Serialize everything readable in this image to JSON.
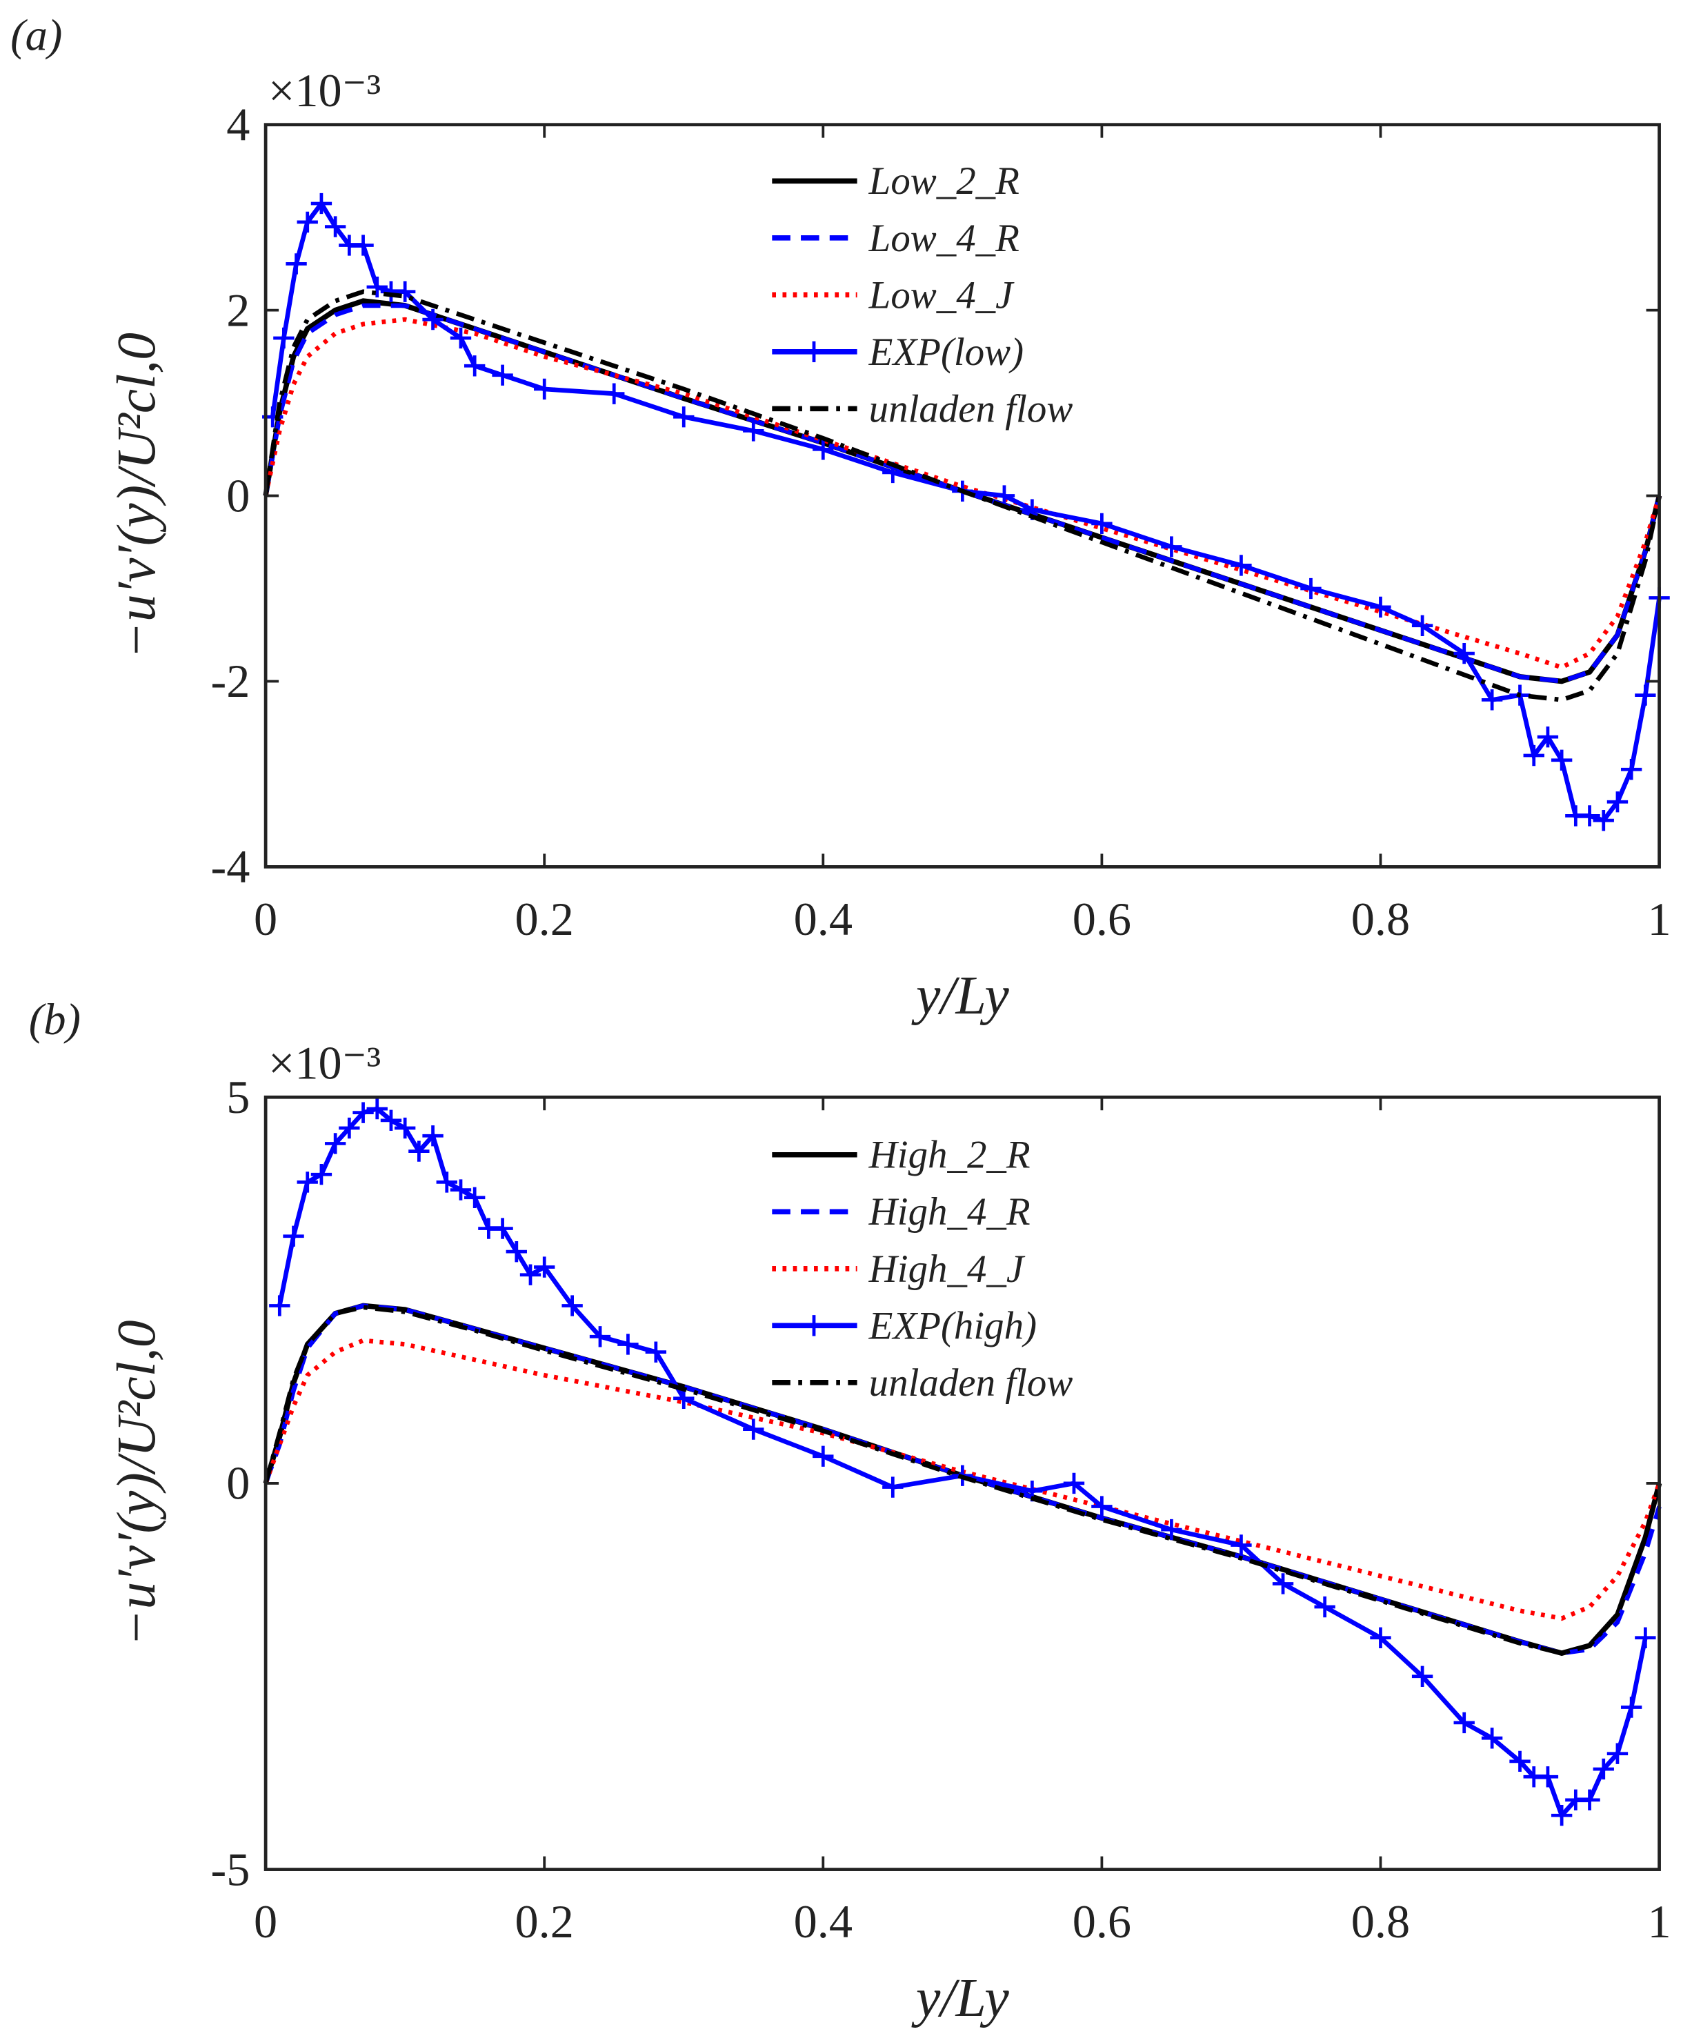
{
  "chart_data": [
    {
      "type": "line",
      "panel_label": "(a)",
      "multiplier": "×10⁻³",
      "xlabel": "y/Ly",
      "ylabel": "−u′v′(y)/U²cl,0",
      "xlim": [
        0,
        1
      ],
      "ylim": [
        -4,
        4
      ],
      "xticks": [
        0,
        0.2,
        0.4,
        0.6,
        0.8,
        1
      ],
      "yticks": [
        -4,
        -2,
        0,
        2,
        4
      ],
      "legend": "top",
      "x": [
        0,
        0.01,
        0.02,
        0.03,
        0.05,
        0.07,
        0.1,
        0.15,
        0.2,
        0.3,
        0.4,
        0.5,
        0.6,
        0.7,
        0.8,
        0.9,
        0.93,
        0.95,
        0.97,
        0.99,
        1
      ],
      "series": [
        {
          "name": "Low_2_R",
          "color": "#000000",
          "style": "solid",
          "values": [
            0,
            0.9,
            1.5,
            1.8,
            2.0,
            2.1,
            2.05,
            1.8,
            1.55,
            1.05,
            0.57,
            0.05,
            -0.45,
            -0.95,
            -1.45,
            -1.95,
            -2.0,
            -1.9,
            -1.5,
            -0.6,
            0
          ]
        },
        {
          "name": "Low_4_R",
          "color": "#0000ff",
          "style": "dashed",
          "values": [
            0,
            0.85,
            1.45,
            1.75,
            1.95,
            2.05,
            2.05,
            1.8,
            1.55,
            1.05,
            0.57,
            0.05,
            -0.45,
            -0.95,
            -1.45,
            -1.95,
            -2.0,
            -1.9,
            -1.5,
            -0.6,
            0
          ]
        },
        {
          "name": "Low_4_J",
          "color": "#ff0000",
          "style": "dotted",
          "values": [
            0,
            0.7,
            1.2,
            1.5,
            1.75,
            1.85,
            1.9,
            1.75,
            1.5,
            1.1,
            0.6,
            0.1,
            -0.35,
            -0.8,
            -1.25,
            -1.7,
            -1.85,
            -1.7,
            -1.3,
            -0.5,
            0
          ]
        },
        {
          "name": "EXP(low)",
          "color": "#0000ff",
          "style": "solid",
          "marker": "+",
          "x": [
            0.005,
            0.013,
            0.022,
            0.03,
            0.04,
            0.05,
            0.06,
            0.07,
            0.08,
            0.09,
            0.1,
            0.12,
            0.14,
            0.15,
            0.17,
            0.2,
            0.25,
            0.3,
            0.35,
            0.4,
            0.45,
            0.5,
            0.53,
            0.55,
            0.6,
            0.65,
            0.7,
            0.75,
            0.8,
            0.83,
            0.86,
            0.88,
            0.9,
            0.91,
            0.92,
            0.93,
            0.94,
            0.95,
            0.96,
            0.97,
            0.98,
            0.99,
            1.0
          ],
          "values": [
            0.85,
            1.7,
            2.5,
            2.95,
            3.15,
            2.9,
            2.7,
            2.7,
            2.25,
            2.2,
            2.2,
            1.9,
            1.7,
            1.4,
            1.3,
            1.15,
            1.1,
            0.85,
            0.7,
            0.5,
            0.25,
            0.05,
            0.0,
            -0.15,
            -0.3,
            -0.55,
            -0.75,
            -1.0,
            -1.2,
            -1.4,
            -1.7,
            -2.2,
            -2.15,
            -2.8,
            -2.6,
            -2.85,
            -3.45,
            -3.45,
            -3.5,
            -3.3,
            -2.95,
            -2.15,
            -1.1
          ]
        },
        {
          "name": "unladen flow",
          "color": "#000000",
          "style": "dashdot",
          "values": [
            0,
            1.0,
            1.6,
            1.9,
            2.1,
            2.2,
            2.15,
            1.9,
            1.65,
            1.15,
            0.62,
            0.05,
            -0.5,
            -1.05,
            -1.6,
            -2.15,
            -2.2,
            -2.1,
            -1.7,
            -0.7,
            0
          ]
        }
      ]
    },
    {
      "type": "line",
      "panel_label": "(b)",
      "multiplier": "×10⁻³",
      "xlabel": "y/Ly",
      "ylabel": "−u′v′(y)/U²cl,0",
      "xlim": [
        0,
        1
      ],
      "ylim": [
        -5,
        5
      ],
      "xticks": [
        0,
        0.2,
        0.4,
        0.6,
        0.8,
        1
      ],
      "yticks": [
        -5,
        0,
        5
      ],
      "legend": "top",
      "x": [
        0,
        0.01,
        0.02,
        0.03,
        0.05,
        0.07,
        0.1,
        0.15,
        0.2,
        0.3,
        0.4,
        0.5,
        0.6,
        0.7,
        0.8,
        0.9,
        0.93,
        0.95,
        0.97,
        0.99,
        1
      ],
      "series": [
        {
          "name": "High_2_R",
          "color": "#000000",
          "style": "solid",
          "values": [
            0,
            0.6,
            1.3,
            1.8,
            2.2,
            2.3,
            2.25,
            2.0,
            1.75,
            1.25,
            0.7,
            0.1,
            -0.45,
            -0.95,
            -1.5,
            -2.05,
            -2.2,
            -2.1,
            -1.7,
            -0.7,
            0
          ]
        },
        {
          "name": "High_4_R",
          "color": "#0000ff",
          "style": "dashed",
          "values": [
            0,
            0.5,
            1.2,
            1.75,
            2.2,
            2.3,
            2.25,
            2.0,
            1.75,
            1.25,
            0.7,
            0.1,
            -0.45,
            -0.95,
            -1.5,
            -2.05,
            -2.2,
            -2.15,
            -1.8,
            -0.9,
            -0.3
          ]
        },
        {
          "name": "High_4_J",
          "color": "#ff0000",
          "style": "dotted",
          "values": [
            0,
            0.5,
            1.0,
            1.4,
            1.7,
            1.85,
            1.8,
            1.6,
            1.4,
            1.05,
            0.65,
            0.15,
            -0.3,
            -0.75,
            -1.2,
            -1.65,
            -1.75,
            -1.6,
            -1.2,
            -0.5,
            0
          ]
        },
        {
          "name": "EXP(high)",
          "color": "#0000ff",
          "style": "solid",
          "marker": "+",
          "x": [
            0.01,
            0.02,
            0.03,
            0.04,
            0.05,
            0.06,
            0.07,
            0.08,
            0.09,
            0.1,
            0.11,
            0.12,
            0.13,
            0.14,
            0.15,
            0.16,
            0.17,
            0.18,
            0.19,
            0.2,
            0.22,
            0.24,
            0.26,
            0.28,
            0.3,
            0.35,
            0.4,
            0.45,
            0.5,
            0.55,
            0.58,
            0.6,
            0.65,
            0.7,
            0.73,
            0.76,
            0.8,
            0.83,
            0.86,
            0.88,
            0.9,
            0.91,
            0.92,
            0.93,
            0.94,
            0.95,
            0.96,
            0.97,
            0.98,
            0.99
          ],
          "values": [
            2.3,
            3.2,
            3.9,
            4.0,
            4.4,
            4.6,
            4.8,
            4.85,
            4.7,
            4.6,
            4.3,
            4.5,
            3.9,
            3.8,
            3.7,
            3.3,
            3.3,
            3.0,
            2.7,
            2.8,
            2.3,
            1.9,
            1.8,
            1.7,
            1.1,
            0.7,
            0.35,
            -0.05,
            0.1,
            -0.1,
            0.0,
            -0.3,
            -0.6,
            -0.8,
            -1.3,
            -1.6,
            -2.0,
            -2.5,
            -3.1,
            -3.3,
            -3.6,
            -3.8,
            -3.8,
            -4.3,
            -4.1,
            -4.1,
            -3.7,
            -3.5,
            -2.9,
            -2.0
          ]
        },
        {
          "name": "unladen flow",
          "color": "#000000",
          "style": "dashdot",
          "values": [
            0,
            0.65,
            1.35,
            1.8,
            2.2,
            2.28,
            2.22,
            1.98,
            1.72,
            1.22,
            0.68,
            0.08,
            -0.47,
            -0.97,
            -1.52,
            -2.07,
            -2.2,
            -2.1,
            -1.7,
            -0.7,
            0
          ]
        }
      ]
    }
  ]
}
